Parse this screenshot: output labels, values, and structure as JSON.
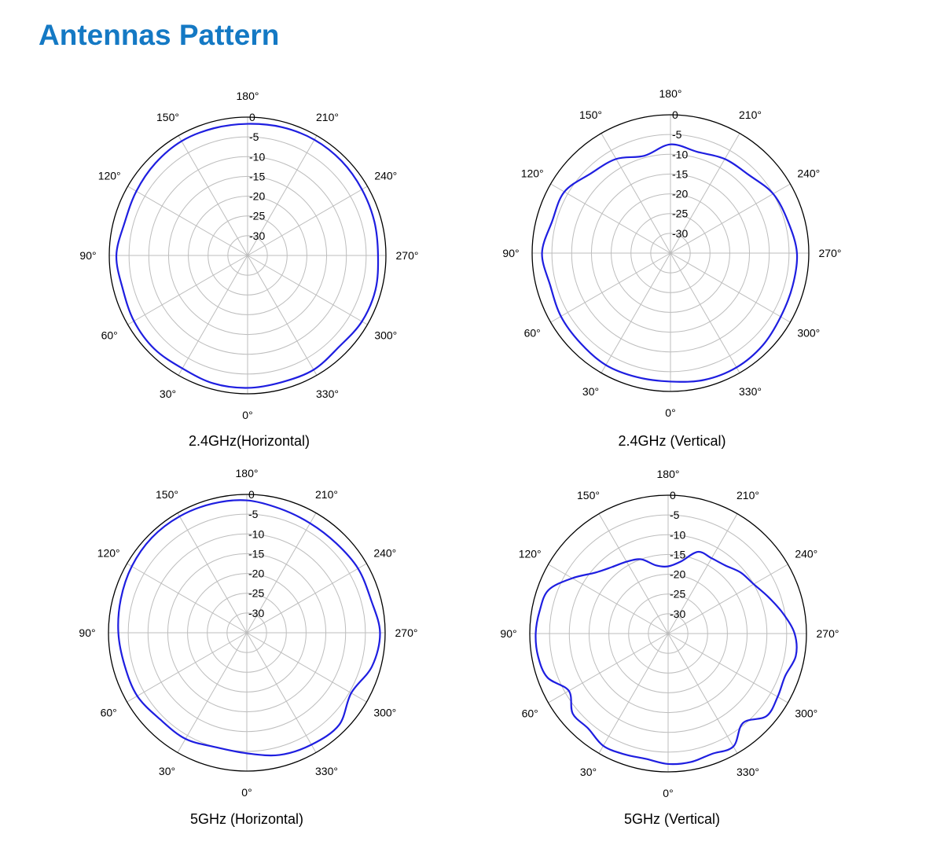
{
  "page": {
    "title": "Antennas Pattern",
    "title_color": "#1479c4"
  },
  "style": {
    "trace_color": "#1e1ee0",
    "grid_color": "#bdbdbd",
    "frame_color": "#000000"
  },
  "chart_data": [
    {
      "type": "polar",
      "title": "2.4GHz(Horizontal)",
      "r_labels": [
        "0",
        "-5",
        "-10",
        "-15",
        "-20",
        "-25",
        "-30"
      ],
      "r_range_db": [
        -35,
        0
      ],
      "angle_labels": [
        "0°",
        "30°",
        "60°",
        "90°",
        "120°",
        "150°",
        "180°",
        "210°",
        "240°",
        "270°",
        "300°",
        "330°"
      ],
      "angles_deg": [
        0,
        15,
        30,
        45,
        60,
        75,
        90,
        105,
        120,
        135,
        150,
        165,
        180,
        195,
        210,
        225,
        240,
        255,
        270,
        285,
        300,
        315,
        330,
        345
      ],
      "values_db": [
        -1.5,
        -1.5,
        -2.0,
        -1.6,
        -1.8,
        -2.3,
        -1.8,
        -2.8,
        -2.5,
        -2.0,
        -1.6,
        -1.7,
        -1.7,
        -1.4,
        -1.2,
        -1.3,
        -1.6,
        -1.8,
        -2.0,
        -1.5,
        -1.6,
        -2.3,
        -1.6,
        -1.8
      ]
    },
    {
      "type": "polar",
      "title": "2.4GHz (Vertical)",
      "r_labels": [
        "0",
        "-5",
        "-10",
        "-15",
        "-20",
        "-25",
        "-30"
      ],
      "r_range_db": [
        -35,
        0
      ],
      "angle_labels": [
        "0°",
        "30°",
        "60°",
        "90°",
        "120°",
        "150°",
        "180°",
        "210°",
        "240°",
        "270°",
        "300°",
        "330°"
      ],
      "angles_deg": [
        0,
        15,
        30,
        45,
        60,
        75,
        90,
        105,
        120,
        135,
        150,
        165,
        180,
        195,
        210,
        225,
        240,
        255,
        270,
        285,
        300,
        315,
        330,
        345
      ],
      "values_db": [
        -2.5,
        -2.5,
        -2.3,
        -2.8,
        -3.0,
        -3.5,
        -2.5,
        -4.0,
        -4.0,
        -6.5,
        -7.5,
        -9.5,
        -7.5,
        -8.5,
        -7.5,
        -7.0,
        -5.0,
        -4.2,
        -3.0,
        -3.0,
        -2.8,
        -2.0,
        -1.6,
        -1.8
      ]
    },
    {
      "type": "polar",
      "title": "5GHz (Horizontal)",
      "r_labels": [
        "0",
        "-5",
        "-10",
        "-15",
        "-20",
        "-25",
        "-30"
      ],
      "r_range_db": [
        -35,
        0
      ],
      "angle_labels": [
        "0°",
        "30°",
        "60°",
        "90°",
        "120°",
        "150°",
        "180°",
        "210°",
        "240°",
        "270°",
        "300°",
        "330°"
      ],
      "angles_deg": [
        0,
        15,
        30,
        45,
        60,
        75,
        90,
        105,
        120,
        135,
        150,
        165,
        180,
        195,
        210,
        225,
        240,
        255,
        270,
        285,
        300,
        315,
        330,
        345
      ],
      "values_db": [
        -4.5,
        -5.0,
        -4.0,
        -4.0,
        -3.0,
        -3.0,
        -2.5,
        -2.0,
        -1.4,
        -1.0,
        -1.0,
        -1.2,
        -1.5,
        -2.5,
        -3.0,
        -3.0,
        -2.5,
        -2.5,
        -1.3,
        -2.2,
        -4.5,
        -2.0,
        -2.3,
        -3.0
      ]
    },
    {
      "type": "polar",
      "title": "5GHz (Vertical)",
      "r_labels": [
        "0",
        "-5",
        "-10",
        "-15",
        "-20",
        "-25",
        "-30"
      ],
      "r_range_db": [
        -35,
        0
      ],
      "angle_labels": [
        "0°",
        "30°",
        "60°",
        "90°",
        "120°",
        "150°",
        "180°",
        "210°",
        "240°",
        "270°",
        "300°",
        "330°"
      ],
      "angles_deg": [
        0,
        10,
        20,
        30,
        40,
        50,
        60,
        70,
        80,
        90,
        100,
        110,
        120,
        130,
        140,
        150,
        160,
        170,
        180,
        190,
        200,
        210,
        220,
        230,
        240,
        250,
        260,
        270,
        280,
        290,
        300,
        310,
        320,
        330,
        340,
        350
      ],
      "values_db": [
        -2.0,
        -2.8,
        -2.5,
        -2.2,
        -3.6,
        -3.5,
        -6.0,
        -2.5,
        -1.6,
        -1.5,
        -2.0,
        -2.8,
        -7.0,
        -11.0,
        -13.0,
        -14.0,
        -15.0,
        -17.5,
        -18.0,
        -16.5,
        -13.0,
        -13.0,
        -12.5,
        -11.0,
        -10.0,
        -8.0,
        -5.5,
        -3.0,
        -2.2,
        -3.5,
        -3.0,
        -2.5,
        -5.5,
        -2.0,
        -2.6,
        -2.0
      ]
    }
  ]
}
